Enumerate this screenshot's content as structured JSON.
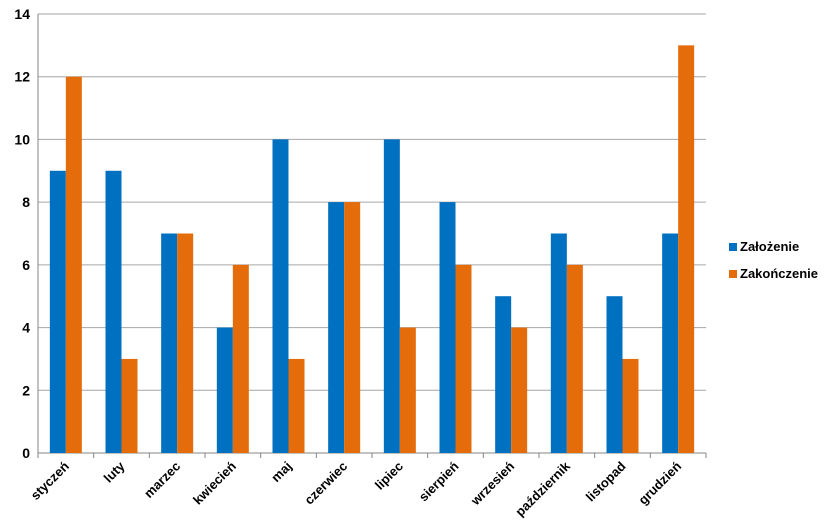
{
  "chart_data": {
    "type": "bar",
    "categories": [
      "styczeń",
      "luty",
      "marzec",
      "kwiecień",
      "maj",
      "czerwiec",
      "lipiec",
      "sierpień",
      "wrzesień",
      "październik",
      "listopad",
      "grudzień"
    ],
    "series": [
      {
        "name": "Założenie",
        "color": "#0070C0",
        "values": [
          9,
          9,
          7,
          4,
          10,
          8,
          10,
          8,
          5,
          7,
          5,
          7
        ]
      },
      {
        "name": "Zakończenie",
        "color": "#E46C0A",
        "values": [
          12,
          3,
          7,
          6,
          3,
          8,
          4,
          6,
          4,
          6,
          3,
          13
        ]
      }
    ],
    "ylim": [
      0,
      14
    ],
    "yticks": [
      "0",
      "2",
      "4",
      "6",
      "8",
      "10",
      "12",
      "14"
    ],
    "grid": true,
    "legend_position": "right",
    "title": "",
    "xlabel": "",
    "ylabel": ""
  }
}
